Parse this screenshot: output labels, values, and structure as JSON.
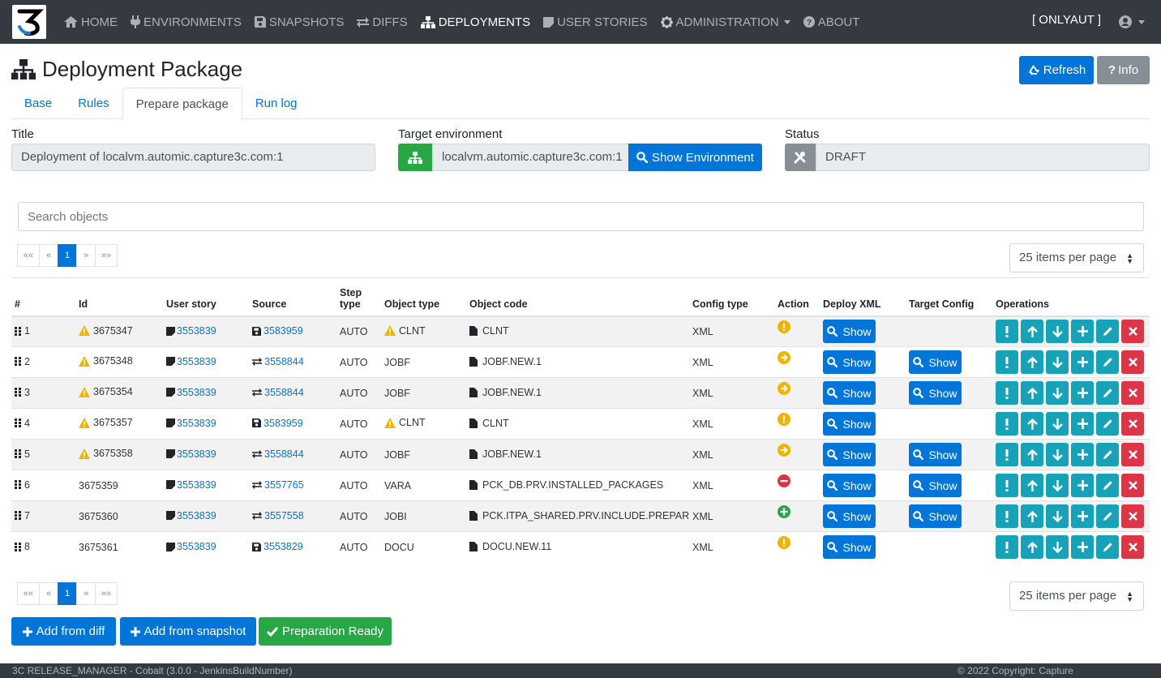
{
  "navbar": {
    "items": [
      {
        "label": "HOME",
        "icon": "home-icon"
      },
      {
        "label": "ENVIRONMENTS",
        "icon": "plug-icon"
      },
      {
        "label": "SNAPSHOTS",
        "icon": "save-icon"
      },
      {
        "label": "DIFFS",
        "icon": "exchange-icon"
      },
      {
        "label": "DEPLOYMENTS",
        "icon": "sitemap-icon"
      },
      {
        "label": "USER STORIES",
        "icon": "sticky-note-icon"
      },
      {
        "label": "ADMINISTRATION",
        "icon": "gear-icon"
      },
      {
        "label": "ABOUT",
        "icon": "question-circle-icon"
      }
    ],
    "active": "DEPLOYMENTS",
    "client": "[ ONLYAUT ]"
  },
  "header": {
    "title": "Deployment Package",
    "refresh_label": "Refresh",
    "info_label": "Info"
  },
  "tabs": [
    {
      "label": "Base"
    },
    {
      "label": "Rules"
    },
    {
      "label": "Prepare package"
    },
    {
      "label": "Run log"
    }
  ],
  "form": {
    "title_label": "Title",
    "title_value": "Deployment of localvm.automic.capture3c.com:1",
    "target_label": "Target environment",
    "target_value": "localvm.automic.capture3c.com:1",
    "show_env_label": "Show Environment",
    "status_label": "Status",
    "status_value": "DRAFT"
  },
  "search": {
    "placeholder": "Search objects"
  },
  "pagination": {
    "first": "««",
    "prev": "«",
    "current": "1",
    "next": "»",
    "last": "»»",
    "per_page": "25 items per page"
  },
  "table": {
    "headers": {
      "num": "#",
      "id": "Id",
      "user_story": "User story",
      "source": "Source",
      "step_type": "Step type",
      "object_type": "Object type",
      "object_code": "Object code",
      "config_type": "Config type",
      "action": "Action",
      "deploy_xml": "Deploy XML",
      "target_config": "Target Config",
      "operations": "Operations"
    },
    "show_label": "Show",
    "rows": [
      {
        "num": "1",
        "id": "3675347",
        "id_warn": true,
        "user_story": "3553839",
        "source_icon": "save-icon",
        "source": "3583959",
        "step_type": "AUTO",
        "object_type": "CLNT",
        "type_warn": true,
        "object_code": "CLNT",
        "config_type": "XML",
        "action": "warning",
        "target_config": false
      },
      {
        "num": "2",
        "id": "3675348",
        "id_warn": true,
        "user_story": "3553839",
        "source_icon": "exchange-icon",
        "source": "3558844",
        "step_type": "AUTO",
        "object_type": "JOBF",
        "type_warn": false,
        "object_code": "JOBF.NEW.1",
        "config_type": "XML",
        "action": "arrow",
        "target_config": true
      },
      {
        "num": "3",
        "id": "3675354",
        "id_warn": true,
        "user_story": "3553839",
        "source_icon": "exchange-icon",
        "source": "3558844",
        "step_type": "AUTO",
        "object_type": "JOBF",
        "type_warn": false,
        "object_code": "JOBF.NEW.1",
        "config_type": "XML",
        "action": "arrow",
        "target_config": true
      },
      {
        "num": "4",
        "id": "3675357",
        "id_warn": true,
        "user_story": "3553839",
        "source_icon": "save-icon",
        "source": "3583959",
        "step_type": "AUTO",
        "object_type": "CLNT",
        "type_warn": true,
        "object_code": "CLNT",
        "config_type": "XML",
        "action": "warning",
        "target_config": false
      },
      {
        "num": "5",
        "id": "3675358",
        "id_warn": true,
        "user_story": "3553839",
        "source_icon": "exchange-icon",
        "source": "3558844",
        "step_type": "AUTO",
        "object_type": "JOBF",
        "type_warn": false,
        "object_code": "JOBF.NEW.1",
        "config_type": "XML",
        "action": "arrow",
        "target_config": true
      },
      {
        "num": "6",
        "id": "3675359",
        "id_warn": false,
        "user_story": "3553839",
        "source_icon": "exchange-icon",
        "source": "3557765",
        "step_type": "AUTO",
        "object_type": "VARA",
        "type_warn": false,
        "object_code": "PCK_DB.PRV.INSTALLED_PACKAGES",
        "config_type": "XML",
        "action": "remove",
        "target_config": true
      },
      {
        "num": "7",
        "id": "3675360",
        "id_warn": false,
        "user_story": "3553839",
        "source_icon": "exchange-icon",
        "source": "3557558",
        "step_type": "AUTO",
        "object_type": "JOBI",
        "type_warn": false,
        "object_code": "PCK.ITPA_SHARED.PRV.INCLUDE.PREPARE_JOB",
        "config_type": "XML",
        "action": "add",
        "target_config": true
      },
      {
        "num": "8",
        "id": "3675361",
        "id_warn": false,
        "user_story": "3553839",
        "source_icon": "save-icon",
        "source": "3553829",
        "step_type": "AUTO",
        "object_type": "DOCU",
        "type_warn": false,
        "object_code": "DOCU.NEW.11",
        "config_type": "XML",
        "action": "warning",
        "target_config": false
      }
    ]
  },
  "actions": {
    "add_from_diff": "Add from diff",
    "add_from_snapshot": "Add from snapshot",
    "preparation_ready": "Preparation Ready"
  },
  "footer": {
    "left": "3C RELEASE_MANAGER - Cobalt (3.0.0 - JenkinsBuildNumber)",
    "right": "© 2022 Copyright: Capture"
  },
  "colors": {
    "navbar": "#343a40",
    "primary": "#0275d8",
    "info": "#17a2b8",
    "danger": "#dc3545",
    "success": "#28a745",
    "warning": "#f0b400"
  }
}
